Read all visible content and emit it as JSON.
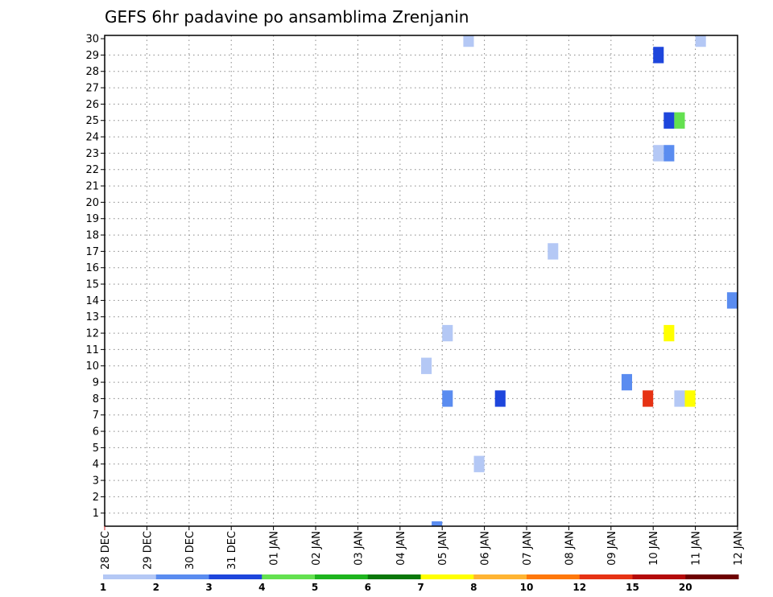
{
  "chart_data": {
    "type": "heatmap",
    "title": "GEFS 6hr padavine po ansamblima Zrenjanin",
    "xlabel": "",
    "ylabel": "",
    "x_ticks": [
      "28 DEC",
      "29 DEC",
      "30 DEC",
      "31 DEC",
      "01 JAN",
      "02 JAN",
      "03 JAN",
      "04 JAN",
      "05 JAN",
      "06 JAN",
      "07 JAN",
      "08 JAN",
      "09 JAN",
      "10 JAN",
      "11 JAN",
      "12 JAN"
    ],
    "y_ticks": [
      1,
      2,
      3,
      4,
      5,
      6,
      7,
      8,
      9,
      10,
      11,
      12,
      13,
      14,
      15,
      16,
      17,
      18,
      19,
      20,
      21,
      22,
      23,
      24,
      25,
      26,
      27,
      28,
      29,
      30
    ],
    "xlim": [
      "28 DEC 00Z",
      "12 JAN 00Z"
    ],
    "ylim": [
      0.2,
      30.2
    ],
    "grid": true,
    "legend_position": "bottom",
    "legend_labels": [
      "1",
      "2",
      "3",
      "4",
      "5",
      "6",
      "7",
      "8",
      "10",
      "12",
      "15",
      "20"
    ],
    "legend_colors": [
      "#b4c8f5",
      "#5a8cf0",
      "#1e46dc",
      "#64e150",
      "#1eb41e",
      "#0a780a",
      "#ffff00",
      "#ffb432",
      "#ff780a",
      "#e63214",
      "#b40a0a",
      "#6e0000"
    ],
    "cells": [
      {
        "member": 0,
        "time": "04 JAN 18Z",
        "precip_min": 2
      },
      {
        "member": 4,
        "time": "05 JAN 18Z",
        "precip_min": 1
      },
      {
        "member": 8,
        "time": "05 JAN 00Z",
        "precip_min": 2
      },
      {
        "member": 8,
        "time": "06 JAN 06Z",
        "precip_min": 3
      },
      {
        "member": 8,
        "time": "09 JAN 18Z",
        "precip_min": 12
      },
      {
        "member": 8,
        "time": "10 JAN 12Z",
        "precip_min": 1
      },
      {
        "member": 8,
        "time": "10 JAN 18Z",
        "precip_min": 7
      },
      {
        "member": 9,
        "time": "09 JAN 06Z",
        "precip_min": 2
      },
      {
        "member": 10,
        "time": "04 JAN 12Z",
        "precip_min": 1
      },
      {
        "member": 12,
        "time": "05 JAN 00Z",
        "precip_min": 1
      },
      {
        "member": 12,
        "time": "10 JAN 06Z",
        "precip_min": 7
      },
      {
        "member": 14,
        "time": "11 JAN 18Z",
        "precip_min": 2
      },
      {
        "member": 14,
        "time": "12 JAN 00Z",
        "precip_min": 1
      },
      {
        "member": 17,
        "time": "07 JAN 12Z",
        "precip_min": 1
      },
      {
        "member": 23,
        "time": "10 JAN 00Z",
        "precip_min": 1
      },
      {
        "member": 23,
        "time": "10 JAN 06Z",
        "precip_min": 2
      },
      {
        "member": 25,
        "time": "10 JAN 06Z",
        "precip_min": 3
      },
      {
        "member": 25,
        "time": "10 JAN 12Z",
        "precip_min": 4
      },
      {
        "member": 29,
        "time": "10 JAN 00Z",
        "precip_min": 3
      },
      {
        "member": 30,
        "time": "05 JAN 12Z",
        "precip_min": 1
      },
      {
        "member": 30,
        "time": "11 JAN 00Z",
        "precip_min": 1
      }
    ]
  }
}
